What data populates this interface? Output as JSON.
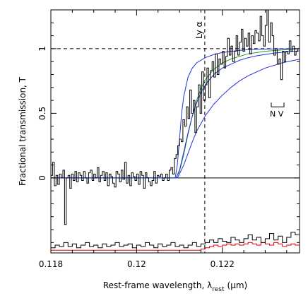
{
  "chart_data": {
    "type": "line",
    "xlabel": "Rest-frame wavelength, λ",
    "xlabel_subscript": "rest",
    "xlabel_unit": "(μm)",
    "ylabel": "Fractional transmission, T",
    "xlim": [
      0.118,
      0.1238
    ],
    "ylim": [
      -0.58,
      1.3
    ],
    "x_ticks": [
      0.118,
      0.12,
      0.122
    ],
    "x_tick_labels": [
      "0.118",
      "0.12",
      "0.122"
    ],
    "y_ticks": [
      0,
      0.5,
      1
    ],
    "y_tick_labels": [
      "0",
      "0.5",
      "1"
    ],
    "grid": false,
    "annotations": [
      {
        "text": "Ly α",
        "x": 0.12159,
        "kind": "vertical-dashed-line"
      },
      {
        "text": "N V",
        "x": 0.1239,
        "kind": "doublet-marker"
      },
      {
        "kind": "horizontal-dashed-line",
        "y": 1.0
      },
      {
        "kind": "horizontal-solid-line",
        "y": 0.0
      }
    ],
    "series": [
      {
        "role": "observed transmission (histogram)",
        "color": "#000000",
        "step": true,
        "x": [
          0.118,
          0.11804,
          0.11808,
          0.11812,
          0.11816,
          0.1182,
          0.11824,
          0.11828,
          0.11832,
          0.11836,
          0.1184,
          0.11844,
          0.11848,
          0.11852,
          0.11856,
          0.1186,
          0.11864,
          0.11868,
          0.11872,
          0.11876,
          0.1188,
          0.11884,
          0.11888,
          0.11892,
          0.11896,
          0.119,
          0.11904,
          0.11908,
          0.11912,
          0.11916,
          0.1192,
          0.11924,
          0.11928,
          0.11932,
          0.11936,
          0.1194,
          0.11944,
          0.11948,
          0.11952,
          0.11956,
          0.1196,
          0.11964,
          0.11968,
          0.11972,
          0.11976,
          0.1198,
          0.11984,
          0.11988,
          0.11992,
          0.11996,
          0.12,
          0.12004,
          0.12008,
          0.12012,
          0.12016,
          0.1202,
          0.12024,
          0.12028,
          0.12032,
          0.12036,
          0.1204,
          0.12044,
          0.12048,
          0.12052,
          0.12056,
          0.1206,
          0.12064,
          0.12068,
          0.12072,
          0.12076,
          0.1208,
          0.12084,
          0.12088,
          0.12092,
          0.12096,
          0.121,
          0.12104,
          0.12108,
          0.12112,
          0.12116,
          0.1212,
          0.12124,
          0.12128,
          0.12132,
          0.12136,
          0.1214,
          0.12144,
          0.12148,
          0.12152,
          0.12156,
          0.1216,
          0.12164,
          0.12168,
          0.12172,
          0.12176,
          0.1218,
          0.12184,
          0.12188,
          0.12192,
          0.12196,
          0.122,
          0.12204,
          0.12208,
          0.12212,
          0.12216,
          0.1222,
          0.12224,
          0.12228,
          0.12232,
          0.12236,
          0.1224,
          0.12244,
          0.12248,
          0.12252,
          0.12256,
          0.1226,
          0.12264,
          0.12268,
          0.12272,
          0.12276,
          0.1228,
          0.12284,
          0.12288,
          0.12292,
          0.12296,
          0.123,
          0.12304,
          0.12308,
          0.12312,
          0.12316,
          0.1232,
          0.12324,
          0.12328,
          0.12332,
          0.12336,
          0.1234,
          0.12344,
          0.12348,
          0.12352,
          0.12356,
          0.1236,
          0.12364,
          0.12368,
          0.12372,
          0.12376
        ],
        "y": [
          0.02,
          0.12,
          -0.06,
          0.02,
          -0.05,
          0.03,
          0.0,
          0.06,
          -0.36,
          0.0,
          0.02,
          -0.08,
          0.03,
          -0.02,
          0.05,
          -0.03,
          0.04,
          0.02,
          -0.02,
          0.05,
          0.0,
          -0.04,
          0.04,
          0.06,
          -0.02,
          0.03,
          0.0,
          0.08,
          -0.03,
          0.02,
          0.05,
          -0.02,
          0.04,
          -0.06,
          0.03,
          0.01,
          -0.04,
          -0.07,
          0.05,
          0.03,
          -0.03,
          0.06,
          -0.01,
          0.12,
          -0.04,
          0.02,
          -0.06,
          0.04,
          0.01,
          -0.02,
          0.03,
          -0.05,
          0.05,
          0.02,
          -0.08,
          0.04,
          0.0,
          -0.03,
          -0.06,
          -0.02,
          0.05,
          -0.04,
          0.02,
          0.01,
          0.03,
          -0.02,
          0.0,
          0.03,
          -0.02,
          0.06,
          0.08,
          0.03,
          0.15,
          0.18,
          0.25,
          0.3,
          0.28,
          0.45,
          0.4,
          0.55,
          0.46,
          0.68,
          0.5,
          0.6,
          0.35,
          0.55,
          0.72,
          0.5,
          0.82,
          0.6,
          0.72,
          0.85,
          0.62,
          0.83,
          0.9,
          0.78,
          0.96,
          0.8,
          0.92,
          0.88,
          0.98,
          0.85,
          0.94,
          1.08,
          0.95,
          1.02,
          0.9,
          0.98,
          1.1,
          0.95,
          1.05,
          1.15,
          0.98,
          1.08,
          1.02,
          1.12,
          0.96,
          1.1,
          1.04,
          1.14,
          1.12,
          1.06,
          1.25,
          1.1,
          1.02,
          1.18,
          1.3,
          1.05,
          1.2,
          1.1,
          0.95,
          1.0,
          0.88,
          0.92,
          0.76,
          0.98,
          0.9,
          0.98,
          0.96,
          1.06,
          0.98,
          1.02,
          0.95,
          0.98,
          1.0
        ]
      },
      {
        "role": "model curve (green)",
        "color": "#2ca02c",
        "x": [
          0.118,
          0.1205,
          0.12092,
          0.121,
          0.1211,
          0.1212,
          0.1213,
          0.1214,
          0.1215,
          0.1216,
          0.1218,
          0.122,
          0.1222,
          0.1224,
          0.1226,
          0.1228,
          0.123,
          0.1232,
          0.1234,
          0.1236,
          0.1238
        ],
        "y": [
          0.0,
          0.0,
          0.0,
          0.05,
          0.18,
          0.34,
          0.48,
          0.6,
          0.69,
          0.76,
          0.84,
          0.89,
          0.92,
          0.94,
          0.96,
          0.97,
          0.98,
          0.985,
          0.99,
          0.995,
          0.998
        ]
      },
      {
        "role": "model curve (blue, steep)",
        "color": "#2233dd",
        "x": [
          0.118,
          0.1209,
          0.12095,
          0.121,
          0.12105,
          0.1211,
          0.1212,
          0.1213,
          0.1214,
          0.1216,
          0.1218,
          0.122,
          0.1222,
          0.1225,
          0.1228,
          0.1232,
          0.1236,
          0.1238
        ],
        "y": [
          0.0,
          0.0,
          0.1,
          0.3,
          0.5,
          0.63,
          0.78,
          0.85,
          0.89,
          0.93,
          0.955,
          0.97,
          0.98,
          0.99,
          0.995,
          0.998,
          0.999,
          1.0
        ]
      },
      {
        "role": "model curve (blue, medium)",
        "color": "#2233dd",
        "x": [
          0.118,
          0.12092,
          0.121,
          0.1211,
          0.1212,
          0.1213,
          0.1214,
          0.1215,
          0.1216,
          0.1218,
          0.122,
          0.1222,
          0.1224,
          0.1226,
          0.1228,
          0.123,
          0.1232,
          0.1234,
          0.1236,
          0.1238
        ],
        "y": [
          0.0,
          0.0,
          0.06,
          0.2,
          0.35,
          0.48,
          0.58,
          0.66,
          0.72,
          0.8,
          0.85,
          0.88,
          0.91,
          0.93,
          0.945,
          0.955,
          0.965,
          0.972,
          0.978,
          0.983
        ]
      },
      {
        "role": "model curve (blue, shallow)",
        "color": "#2233dd",
        "x": [
          0.118,
          0.12095,
          0.121,
          0.1211,
          0.1212,
          0.1213,
          0.1214,
          0.1216,
          0.1218,
          0.122,
          0.1222,
          0.1224,
          0.1226,
          0.1228,
          0.123,
          0.1232,
          0.1234,
          0.1236,
          0.1238
        ],
        "y": [
          0.0,
          0.0,
          0.03,
          0.1,
          0.19,
          0.28,
          0.36,
          0.48,
          0.57,
          0.64,
          0.7,
          0.75,
          0.79,
          0.82,
          0.85,
          0.87,
          0.89,
          0.905,
          0.918
        ]
      },
      {
        "role": "error spectrum (black)",
        "color": "#000000",
        "step": true,
        "x": [
          0.118,
          0.1181,
          0.1182,
          0.1183,
          0.1184,
          0.1185,
          0.1186,
          0.1187,
          0.1188,
          0.1189,
          0.119,
          0.1191,
          0.1192,
          0.1193,
          0.1194,
          0.1195,
          0.1196,
          0.1197,
          0.1198,
          0.1199,
          0.12,
          0.1201,
          0.1202,
          0.1203,
          0.1204,
          0.1205,
          0.1206,
          0.1207,
          0.1208,
          0.1209,
          0.121,
          0.1211,
          0.1212,
          0.1213,
          0.1214,
          0.1215,
          0.1216,
          0.1217,
          0.1218,
          0.1219,
          0.122,
          0.1221,
          0.1222,
          0.1223,
          0.1224,
          0.1225,
          0.1226,
          0.1227,
          0.1228,
          0.1229,
          0.123,
          0.1231,
          0.1232,
          0.1233,
          0.1234,
          0.1235,
          0.1236,
          0.1237
        ],
        "y": [
          -0.54,
          -0.52,
          -0.53,
          -0.5,
          -0.53,
          -0.51,
          -0.54,
          -0.52,
          -0.5,
          -0.53,
          -0.52,
          -0.54,
          -0.51,
          -0.53,
          -0.52,
          -0.5,
          -0.53,
          -0.52,
          -0.51,
          -0.54,
          -0.52,
          -0.53,
          -0.5,
          -0.52,
          -0.54,
          -0.51,
          -0.53,
          -0.52,
          -0.5,
          -0.53,
          -0.52,
          -0.54,
          -0.52,
          -0.5,
          -0.53,
          -0.51,
          -0.5,
          -0.48,
          -0.5,
          -0.47,
          -0.49,
          -0.5,
          -0.46,
          -0.48,
          -0.5,
          -0.47,
          -0.44,
          -0.48,
          -0.46,
          -0.5,
          -0.47,
          -0.43,
          -0.48,
          -0.45,
          -0.5,
          -0.46,
          -0.42,
          -0.44
        ]
      },
      {
        "role": "error spectrum (red)",
        "color": "#dd0000",
        "step": true,
        "x": [
          0.118,
          0.1184,
          0.1188,
          0.1192,
          0.1196,
          0.12,
          0.1204,
          0.1208,
          0.121,
          0.1212,
          0.1214,
          0.1215,
          0.1216,
          0.1217,
          0.1218,
          0.1219,
          0.122,
          0.1221,
          0.1222,
          0.1223,
          0.1224,
          0.1225,
          0.1226,
          0.1227,
          0.1228,
          0.1229,
          0.123,
          0.1231,
          0.1232,
          0.1233,
          0.1234,
          0.1235,
          0.1236,
          0.1237
        ],
        "y": [
          -0.56,
          -0.56,
          -0.56,
          -0.56,
          -0.56,
          -0.56,
          -0.56,
          -0.56,
          -0.56,
          -0.56,
          -0.56,
          -0.55,
          -0.54,
          -0.53,
          -0.52,
          -0.53,
          -0.52,
          -0.51,
          -0.52,
          -0.51,
          -0.52,
          -0.51,
          -0.5,
          -0.51,
          -0.52,
          -0.5,
          -0.51,
          -0.52,
          -0.5,
          -0.51,
          -0.53,
          -0.52,
          -0.51,
          -0.52
        ]
      }
    ]
  }
}
